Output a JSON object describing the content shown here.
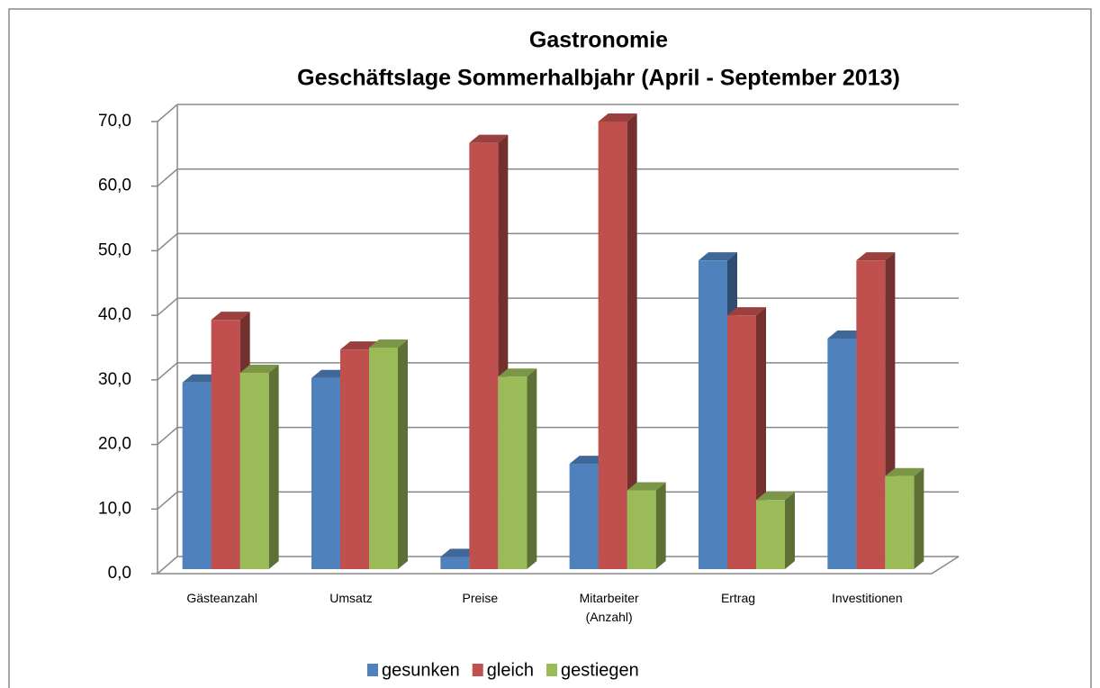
{
  "chart_data": {
    "type": "bar3d",
    "title": "Gastronomie",
    "subtitle": "Geschäftslage Sommerhalbjahr (April - September 2013)",
    "categories": [
      "Gästeanzahl",
      "Umsatz",
      "Preise",
      "Mitarbeiter (Anzahl)",
      "Ertrag",
      "Investitionen"
    ],
    "series": [
      {
        "name": "gesunken",
        "color": "#4f81bd",
        "values": [
          29.6,
          30.3,
          2.6,
          17.0,
          48.5,
          36.4
        ]
      },
      {
        "name": "gleich",
        "color": "#c0504d",
        "values": [
          39.3,
          34.7,
          66.7,
          70.0,
          40.0,
          48.5
        ]
      },
      {
        "name": "gestiegen",
        "color": "#9bbb59",
        "values": [
          31.1,
          35.0,
          30.5,
          12.9,
          11.4,
          15.1
        ]
      }
    ],
    "ylim": [
      0,
      70
    ],
    "yticks": [
      {
        "value": 0,
        "label": "0,0"
      },
      {
        "value": 10,
        "label": "10,0"
      },
      {
        "value": 20,
        "label": "20,0"
      },
      {
        "value": 30,
        "label": "30,0"
      },
      {
        "value": 40,
        "label": "40,0"
      },
      {
        "value": 50,
        "label": "50,0"
      },
      {
        "value": 60,
        "label": "60,0"
      },
      {
        "value": 70,
        "label": "70,0"
      }
    ],
    "grid": true,
    "legend": "bottom"
  }
}
